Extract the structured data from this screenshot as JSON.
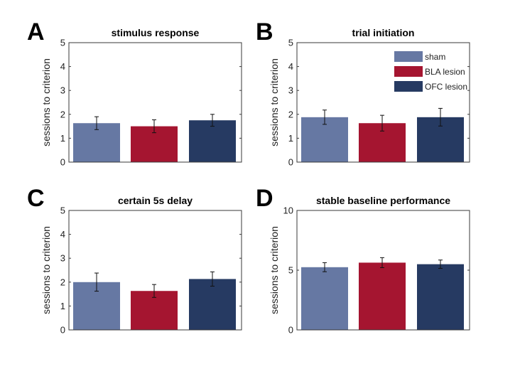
{
  "colors": {
    "sham": "#6678a3",
    "bla": "#a51530",
    "ofc": "#263a62",
    "axis": "#3a3a3a",
    "errorbar": "#111111"
  },
  "chart_data": [
    {
      "type": "bar",
      "panel_letter": "A",
      "title": "stimulus response",
      "xlabel": "",
      "ylabel": "sessions to criterion",
      "ylim": [
        0,
        5
      ],
      "yticks": [
        0,
        1,
        2,
        3,
        4,
        5
      ],
      "categories": [
        "sham",
        "BLA lesion",
        "OFC lesion"
      ],
      "values": [
        1.63,
        1.5,
        1.75
      ],
      "errors": [
        0.27,
        0.27,
        0.25
      ],
      "grid": false
    },
    {
      "type": "bar",
      "panel_letter": "B",
      "title": "trial initiation",
      "xlabel": "",
      "ylabel": "sessions to criterion",
      "ylim": [
        0,
        5
      ],
      "yticks": [
        0,
        1,
        2,
        3,
        4,
        5
      ],
      "categories": [
        "sham",
        "BLA lesion",
        "OFC lesion"
      ],
      "values": [
        1.88,
        1.63,
        1.88
      ],
      "errors": [
        0.3,
        0.33,
        0.37
      ],
      "grid": false,
      "legend": {
        "placement": "top-right",
        "entries": [
          "sham",
          "BLA lesion",
          "OFC lesion"
        ]
      }
    },
    {
      "type": "bar",
      "panel_letter": "C",
      "title": "certain 5s delay",
      "xlabel": "",
      "ylabel": "sessions to criterion",
      "ylim": [
        0,
        5
      ],
      "yticks": [
        0,
        1,
        2,
        3,
        4,
        5
      ],
      "categories": [
        "sham",
        "BLA lesion",
        "OFC lesion"
      ],
      "values": [
        2.0,
        1.63,
        2.13
      ],
      "errors": [
        0.38,
        0.27,
        0.3
      ],
      "grid": false
    },
    {
      "type": "bar",
      "panel_letter": "D",
      "title": "stable baseline performance",
      "xlabel": "",
      "ylabel": "sessions to criterion",
      "ylim": [
        0,
        10
      ],
      "yticks": [
        0,
        5,
        10
      ],
      "categories": [
        "sham",
        "BLA lesion",
        "OFC lesion"
      ],
      "values": [
        5.25,
        5.63,
        5.5
      ],
      "errors": [
        0.38,
        0.42,
        0.35
      ],
      "grid": false
    }
  ]
}
